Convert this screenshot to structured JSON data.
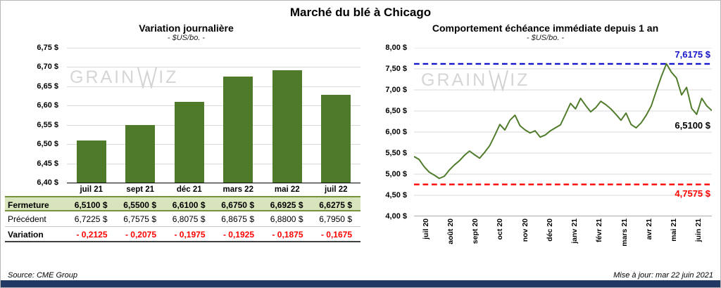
{
  "header": {
    "title": "Marché du blé à Chicago"
  },
  "watermark": {
    "left": "GRAIN",
    "right": "IZ"
  },
  "colors": {
    "bar": "#4e7a29",
    "line": "#4e7a29",
    "grid": "#d9d9d9",
    "resistance": "#1414cc",
    "support": "#ff0000",
    "fermeture_bg": "#d7e4bc",
    "fermeture_border": "#76923c",
    "variation_text": "#ff0000",
    "navy": "#1f3864"
  },
  "chart_data": [
    {
      "type": "bar",
      "title": "Variation  journalière",
      "subtitle": "- $US/bo. -",
      "categories": [
        "juil 21",
        "sept 21",
        "déc 21",
        "mars 22",
        "mai 22",
        "juil 22"
      ],
      "values": [
        6.51,
        6.55,
        6.61,
        6.675,
        6.6925,
        6.6275
      ],
      "ylim": [
        6.4,
        6.75
      ],
      "yticks": [
        {
          "v": 6.75,
          "label": "6,75 $"
        },
        {
          "v": 6.7,
          "label": "6,70 $"
        },
        {
          "v": 6.65,
          "label": "6,65 $"
        },
        {
          "v": 6.6,
          "label": "6,60 $"
        },
        {
          "v": 6.55,
          "label": "6,55 $"
        },
        {
          "v": 6.5,
          "label": "6,50 $"
        },
        {
          "v": 6.45,
          "label": "6,45 $"
        },
        {
          "v": 6.4,
          "label": "6,40 $"
        }
      ],
      "grid": true,
      "legend": "none"
    },
    {
      "type": "line",
      "title": "Comportement  échéance immédiate depuis 1 an",
      "subtitle": "- $US/bo. -",
      "x_labels": [
        "juil 20",
        "août 20",
        "sept 20",
        "oct 20",
        "nov 20",
        "déc 20",
        "janv 21",
        "févr 21",
        "mars 21",
        "avr 21",
        "mai 21",
        "juin 21"
      ],
      "ylim": [
        4.0,
        8.0
      ],
      "yticks": [
        {
          "v": 8.0,
          "label": "8,00 $"
        },
        {
          "v": 7.5,
          "label": "7,50 $"
        },
        {
          "v": 7.0,
          "label": "7,00 $"
        },
        {
          "v": 6.5,
          "label": "6,50 $"
        },
        {
          "v": 6.0,
          "label": "6,00 $"
        },
        {
          "v": 5.5,
          "label": "5,50 $"
        },
        {
          "v": 5.0,
          "label": "5,00 $"
        },
        {
          "v": 4.5,
          "label": "4,50 $"
        },
        {
          "v": 4.0,
          "label": "4,00 $"
        }
      ],
      "points": [
        5.42,
        5.35,
        5.18,
        5.05,
        4.98,
        4.9,
        4.95,
        5.1,
        5.22,
        5.32,
        5.45,
        5.55,
        5.46,
        5.38,
        5.52,
        5.68,
        5.92,
        6.18,
        6.05,
        6.28,
        6.4,
        6.15,
        6.05,
        5.98,
        6.03,
        5.88,
        5.93,
        6.03,
        6.1,
        6.17,
        6.42,
        6.68,
        6.55,
        6.8,
        6.63,
        6.48,
        6.58,
        6.73,
        6.65,
        6.55,
        6.42,
        6.28,
        6.45,
        6.18,
        6.1,
        6.22,
        6.4,
        6.62,
        6.98,
        7.32,
        7.62,
        7.42,
        7.28,
        6.88,
        7.06,
        6.56,
        6.42,
        6.8,
        6.62,
        6.51
      ],
      "resistance": {
        "value": 7.6175,
        "label": "7,6175 $"
      },
      "support": {
        "value": 4.7575,
        "label": "4,7575 $"
      },
      "last": {
        "value": 6.51,
        "label": "6,5100 $"
      },
      "grid": true,
      "legend": "none"
    }
  ],
  "table": {
    "rows": [
      {
        "style": "fermeture",
        "label": "Fermeture",
        "values": [
          "6,5100  $",
          "6,5500  $",
          "6,6100  $",
          "6,6750  $",
          "6,6925  $",
          "6,6275  $"
        ]
      },
      {
        "style": "precedent",
        "label": "Précédent",
        "values": [
          "6,7225  $",
          "6,7575  $",
          "6,8075  $",
          "6,8675  $",
          "6,8800  $",
          "6,7950  $"
        ]
      },
      {
        "style": "variation",
        "label": "Variation",
        "values": [
          "- 0,2125",
          "- 0,2075",
          "- 0,1975",
          "- 0,1925",
          "- 0,1875",
          "- 0,1675"
        ]
      }
    ]
  },
  "footer": {
    "source": "Source: CME Group",
    "updated": "Mise à jour: mar 22 juin 2021"
  }
}
